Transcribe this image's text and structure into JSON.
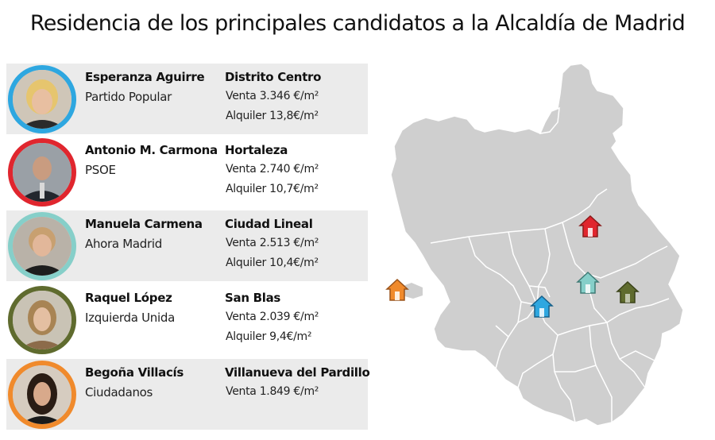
{
  "title": "Residencia de los principales candidatos a la Alcaldía de Madrid",
  "colors": {
    "row_shade": "#ebebeb",
    "map_fill": "#cfcfcf",
    "map_lines": "#ffffff",
    "pp": "#2ea7e0",
    "psoe": "#e0262e",
    "ahora_madrid": "#86cfc9",
    "iu": "#5f6b2e",
    "ciudadanos": "#f08a2c"
  },
  "candidates": [
    {
      "name": "Esperanza Aguirre",
      "party": "Partido Popular",
      "district": "Distrito Centro",
      "sale": "Venta 3.346 €/m²",
      "rent": "Alquiler 13,8€/m²",
      "ring_color": "#2ea7e0"
    },
    {
      "name": "Antonio M. Carmona",
      "party": "PSOE",
      "district": "Hortaleza",
      "sale": "Venta 2.740 €/m²",
      "rent": "Alquiler 10,7€/m²",
      "ring_color": "#e0262e"
    },
    {
      "name": "Manuela Carmena",
      "party": "Ahora Madrid",
      "district": "Ciudad Lineal",
      "sale": "Venta 2.513 €/m²",
      "rent": "Alquiler 10,4€/m²",
      "ring_color": "#86cfc9"
    },
    {
      "name": "Raquel López",
      "party": "Izquierda Unida",
      "district": "San Blas",
      "sale": "Venta 2.039 €/m²",
      "rent": "Alquiler 9,4€/m²",
      "ring_color": "#5f6b2e"
    },
    {
      "name": "Begoña Villacís",
      "party": "Ciudadanos",
      "district": "Villanueva del Pardillo",
      "sale": "Venta 1.849 €/m²",
      "rent": "",
      "ring_color": "#f08a2c"
    }
  ],
  "map_markers": [
    {
      "party": "Partido Popular",
      "color": "#2ea7e0",
      "icon": "house-icon"
    },
    {
      "party": "PSOE",
      "color": "#e0262e",
      "icon": "house-icon"
    },
    {
      "party": "Ahora Madrid",
      "color": "#86cfc9",
      "icon": "house-icon"
    },
    {
      "party": "Izquierda Unida",
      "color": "#5f6b2e",
      "icon": "house-icon"
    },
    {
      "party": "Ciudadanos",
      "color": "#f08a2c",
      "icon": "house-icon"
    }
  ]
}
